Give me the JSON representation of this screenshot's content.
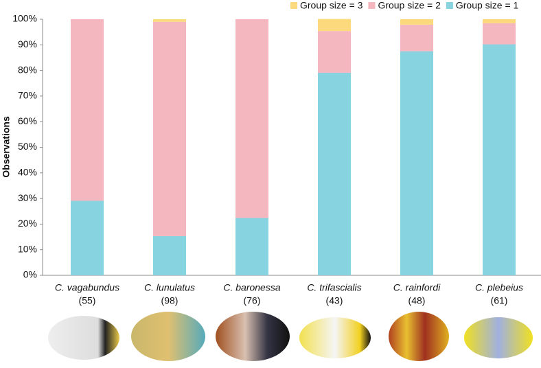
{
  "chart_data": {
    "type": "stacked_bar",
    "y_label": "Observations",
    "categories": [
      "C. vagabundus",
      "C. lunulatus",
      "C. baronessa",
      "C. trifascialis",
      "C. rainfordi",
      "C. plebeius"
    ],
    "sample_sizes": [
      "(55)",
      "(98)",
      "(76)",
      "(43)",
      "(48)",
      "(61)"
    ],
    "series": [
      {
        "name": "Group size = 1",
        "color": "#88d3e0",
        "values": [
          29.1,
          15.3,
          22.4,
          79.1,
          87.5,
          90.2
        ]
      },
      {
        "name": "Group size = 2",
        "color": "#f4b6bf",
        "values": [
          70.9,
          83.7,
          77.6,
          16.3,
          10.4,
          8.2
        ]
      },
      {
        "name": "Group size = 3",
        "color": "#fbd97c",
        "values": [
          0,
          1.0,
          0,
          4.7,
          2.1,
          1.6
        ]
      }
    ],
    "ylim": [
      0,
      100
    ],
    "yticks": [
      {
        "value": 0,
        "label": "0%"
      },
      {
        "value": 10,
        "label": "10%"
      },
      {
        "value": 20,
        "label": "20%"
      },
      {
        "value": 30,
        "label": "30%"
      },
      {
        "value": 40,
        "label": "40%"
      },
      {
        "value": 50,
        "label": "50%"
      },
      {
        "value": 60,
        "label": "60%"
      },
      {
        "value": 70,
        "label": "70%"
      },
      {
        "value": 80,
        "label": "80%"
      },
      {
        "value": 90,
        "label": "90%"
      },
      {
        "value": 100,
        "label": "100%"
      }
    ],
    "legend": "top-right"
  }
}
